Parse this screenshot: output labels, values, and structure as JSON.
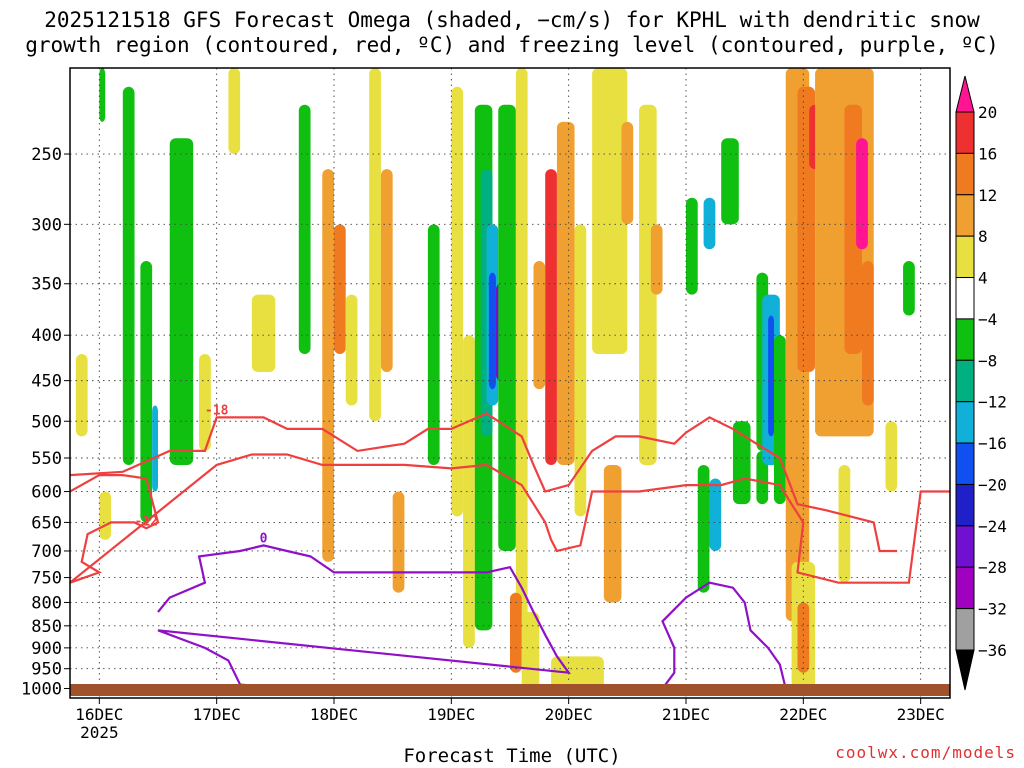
{
  "title_line1": "2025121518 GFS Forecast Omega (shaded, −cm/s) for KPHL with dendritic snow",
  "title_line2": "growth region (contoured, red, ºC) and freezing level (contoured, purple, ºC)",
  "credit": "coolwx.com/models",
  "chart_data": {
    "type": "heatmap",
    "xlabel": "Forecast Time (UTC)",
    "ylabel": "",
    "x_ticks": [
      "16DEC",
      "17DEC",
      "18DEC",
      "19DEC",
      "20DEC",
      "21DEC",
      "22DEC",
      "23DEC"
    ],
    "x_tick_year": "2025",
    "x_range_days": [
      15.75,
      23.25
    ],
    "y_levels_hpa": [
      250,
      300,
      350,
      400,
      450,
      500,
      550,
      600,
      650,
      700,
      750,
      800,
      850,
      900,
      950,
      1000
    ],
    "y_range_hpa": [
      200,
      1025
    ],
    "colorbar": {
      "labels": [
        "20",
        "16",
        "12",
        "8",
        "4",
        "−4",
        "−8",
        "−12",
        "−16",
        "−20",
        "−24",
        "−28",
        "−32",
        "−36"
      ],
      "colors": [
        "#ff1493",
        "#ee3030",
        "#f07a20",
        "#f0a030",
        "#e8e040",
        "#ffffff",
        "#10c010",
        "#00b080",
        "#10b0d8",
        "#1050f0",
        "#2020c8",
        "#7010d0",
        "#a000c0",
        "#a0a0a0",
        "#000000"
      ]
    },
    "contours": {
      "dgz_red": [
        "-12",
        "-18"
      ],
      "freezing_purple": [
        "0"
      ]
    },
    "series": [
      {
        "name": "-18",
        "color": "#ee4040",
        "points": [
          [
            15.75,
            575
          ],
          [
            16.2,
            570
          ],
          [
            16.6,
            540
          ],
          [
            16.9,
            540
          ],
          [
            17.0,
            495
          ],
          [
            17.4,
            495
          ],
          [
            17.6,
            510
          ],
          [
            17.9,
            510
          ],
          [
            18.2,
            540
          ],
          [
            18.6,
            530
          ],
          [
            18.8,
            510
          ],
          [
            19.0,
            510
          ],
          [
            19.3,
            490
          ],
          [
            19.6,
            520
          ],
          [
            19.7,
            560
          ],
          [
            19.8,
            600
          ],
          [
            20.0,
            590
          ],
          [
            20.2,
            540
          ],
          [
            20.4,
            520
          ],
          [
            20.6,
            520
          ],
          [
            20.9,
            530
          ],
          [
            21.0,
            515
          ],
          [
            21.2,
            495
          ],
          [
            21.4,
            510
          ],
          [
            21.6,
            530
          ],
          [
            21.8,
            550
          ],
          [
            21.95,
            620
          ],
          [
            22.2,
            630
          ],
          [
            22.6,
            650
          ],
          [
            22.65,
            700
          ],
          [
            22.8,
            700
          ]
        ]
      },
      {
        "name": "-12",
        "color": "#ee4040",
        "points": [
          [
            15.75,
            600
          ],
          [
            16.0,
            575
          ],
          [
            16.2,
            575
          ],
          [
            16.4,
            580
          ],
          [
            16.5,
            650
          ],
          [
            16.4,
            660
          ],
          [
            16.3,
            650
          ],
          [
            16.1,
            650
          ],
          [
            15.9,
            670
          ],
          [
            15.85,
            720
          ],
          [
            16.0,
            740
          ],
          [
            15.75,
            760
          ],
          [
            17.0,
            560
          ],
          [
            17.3,
            545
          ],
          [
            17.6,
            545
          ],
          [
            17.9,
            560
          ],
          [
            18.3,
            560
          ],
          [
            18.6,
            560
          ],
          [
            19.0,
            565
          ],
          [
            19.3,
            560
          ],
          [
            19.6,
            590
          ],
          [
            19.8,
            650
          ],
          [
            19.85,
            680
          ],
          [
            19.9,
            700
          ],
          [
            20.1,
            690
          ],
          [
            20.2,
            600
          ],
          [
            20.6,
            600
          ],
          [
            21.0,
            590
          ],
          [
            21.3,
            590
          ],
          [
            21.5,
            580
          ],
          [
            21.8,
            590
          ],
          [
            21.9,
            620
          ],
          [
            22.0,
            650
          ],
          [
            21.95,
            740
          ],
          [
            22.3,
            760
          ],
          [
            22.9,
            760
          ],
          [
            23.0,
            600
          ],
          [
            23.25,
            600
          ]
        ]
      },
      {
        "name": "0",
        "color": "#9010c8",
        "points": [
          [
            16.5,
            820
          ],
          [
            16.6,
            790
          ],
          [
            16.9,
            760
          ],
          [
            16.85,
            710
          ],
          [
            17.2,
            700
          ],
          [
            17.4,
            690
          ],
          [
            17.6,
            700
          ],
          [
            17.8,
            710
          ],
          [
            18.0,
            740
          ],
          [
            18.3,
            740
          ],
          [
            18.6,
            740
          ],
          [
            18.9,
            740
          ],
          [
            19.1,
            740
          ],
          [
            19.3,
            740
          ],
          [
            19.5,
            730
          ],
          [
            19.6,
            770
          ],
          [
            19.7,
            820
          ],
          [
            19.8,
            870
          ],
          [
            19.9,
            920
          ],
          [
            20.0,
            960
          ],
          [
            16.5,
            860
          ],
          [
            16.9,
            900
          ],
          [
            17.1,
            930
          ],
          [
            17.2,
            990
          ],
          [
            17.6,
            1000
          ],
          [
            20.8,
            1000
          ],
          [
            20.9,
            960
          ],
          [
            20.9,
            900
          ],
          [
            20.8,
            840
          ],
          [
            21.0,
            790
          ],
          [
            21.2,
            760
          ],
          [
            21.4,
            770
          ],
          [
            21.5,
            800
          ],
          [
            21.55,
            860
          ],
          [
            21.7,
            900
          ],
          [
            21.8,
            940
          ],
          [
            21.85,
            1000
          ]
        ]
      }
    ]
  }
}
